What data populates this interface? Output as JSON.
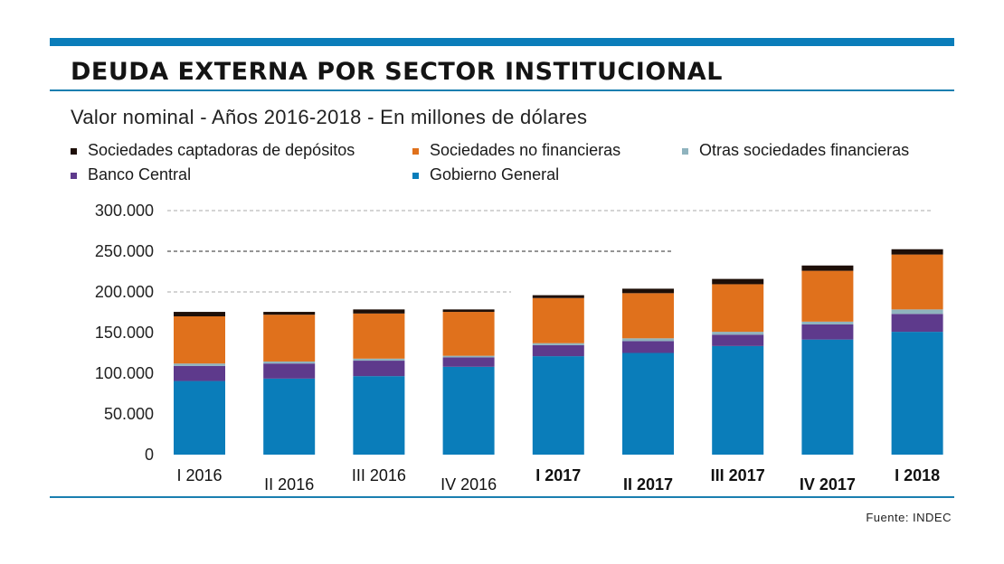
{
  "chart_data": {
    "type": "bar",
    "stacked": true,
    "title": "DEUDA EXTERNA POR SECTOR INSTITUCIONAL",
    "subtitle": "Valor nominal -  Años 2016-2018 - En millones de dólares",
    "xlabel": "",
    "ylabel": "",
    "ylim": [
      0,
      300000
    ],
    "yticks": [
      0,
      50000,
      100000,
      150000,
      200000,
      250000,
      300000
    ],
    "ytick_labels": [
      "0",
      "50.000",
      "100.000",
      "150.000",
      "200.000",
      "250.000",
      "300.000"
    ],
    "grid": "partial dashed horizontal",
    "legend_placement": "top",
    "categories": [
      "I 2016",
      "II 2016",
      "III 2016",
      "IV 2016",
      "I 2017",
      "II 2017",
      "III 2017",
      "IV 2017",
      "I 2018"
    ],
    "series": [
      {
        "name": "Gobierno General",
        "color": "#0a7dba",
        "values": [
          90500,
          93500,
          96500,
          108000,
          121000,
          125000,
          133500,
          141500,
          151000
        ]
      },
      {
        "name": "Banco Central",
        "color": "#5e3a8c",
        "values": [
          18500,
          18500,
          19000,
          11500,
          13500,
          14500,
          14000,
          18500,
          22000
        ]
      },
      {
        "name": "Otras sociedades financieras",
        "color": "#8fb3be",
        "values": [
          3000,
          2500,
          2500,
          2000,
          2500,
          3500,
          3500,
          3500,
          5500
        ]
      },
      {
        "name": "Sociedades no financieras",
        "color": "#e0711c",
        "values": [
          58000,
          57500,
          55500,
          54000,
          55500,
          55500,
          58500,
          62500,
          67500
        ]
      },
      {
        "name": "Sociedades captadoras de depósitos",
        "color": "#1e0f08",
        "values": [
          5500,
          3500,
          5000,
          3000,
          3500,
          5500,
          6500,
          6500,
          6500
        ]
      }
    ]
  },
  "legend": [
    {
      "label": "Sociedades captadoras de depósitos",
      "color": "#1e0f08"
    },
    {
      "label": "Sociedades no financieras",
      "color": "#e0711c"
    },
    {
      "label": "Otras sociedades financieras",
      "color": "#8fb3be"
    },
    {
      "label": "Banco Central",
      "color": "#5e3a8c"
    },
    {
      "label": "Gobierno General",
      "color": "#0a7dba"
    }
  ],
  "source": "Fuente: INDEC",
  "colors": {
    "accent": "#0a7dba"
  }
}
